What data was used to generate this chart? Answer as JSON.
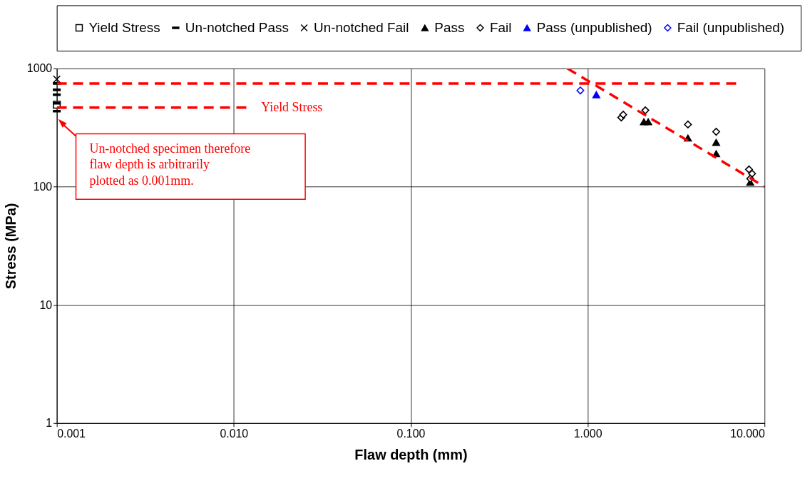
{
  "chart_data": {
    "type": "scatter",
    "xlabel": "Flaw depth (mm)",
    "ylabel": "Stress (MPa)",
    "xlim": [
      0.001,
      10
    ],
    "ylim": [
      1,
      1000
    ],
    "xticks": [
      {
        "value": 0.001,
        "label": "0.001"
      },
      {
        "value": 0.01,
        "label": "0.010"
      },
      {
        "value": 0.1,
        "label": "0.100"
      },
      {
        "value": 1,
        "label": "1.000"
      },
      {
        "value": 10,
        "label": "10.000"
      }
    ],
    "yticks": [
      1,
      10,
      100,
      1000
    ],
    "log": "xy",
    "grid": true,
    "legend": "top",
    "series": [
      {
        "name": "Yield Stress",
        "marker": "square",
        "color": "#000000",
        "x": [
          0.001
        ],
        "values": [
          494
        ]
      },
      {
        "name": "Un-notched Pass",
        "color": "#000000",
        "x": [
          0.001,
          0.001,
          0.001,
          0.001,
          0.001
        ],
        "values": [
          748,
          661,
          600,
          508,
          436
        ]
      },
      {
        "name": "Un-notched Fail",
        "marker": "cross",
        "color": "#000000",
        "x": [
          0.001
        ],
        "values": [
          812
        ]
      },
      {
        "name": "Pass",
        "marker": "triangle",
        "color": "#000000",
        "x": [
          2.08,
          2.2,
          3.69,
          5.33,
          5.33,
          8.3
        ],
        "values": [
          354,
          354,
          258,
          237,
          190,
          109
        ]
      },
      {
        "name": "Fail",
        "marker": "diamond",
        "color": "#000000",
        "x": [
          1.55,
          1.59,
          2.12,
          3.69,
          5.33,
          8.17,
          8.5,
          8.3
        ],
        "values": [
          385,
          407,
          443,
          336,
          292,
          140,
          129,
          117
        ]
      },
      {
        "name": "Pass (unpublished)",
        "marker": "triangle",
        "color": "#0000ff",
        "x": [
          1.12
        ],
        "values": [
          600
        ]
      },
      {
        "name": "Fail (unpublished)",
        "marker": "diamond",
        "color": "#0000ff",
        "x": [
          0.91
        ],
        "values": [
          652
        ]
      },
      {
        "type": "line",
        "line_style": "dashed",
        "color": "#ff0000",
        "x": [
          0.001,
          7.1
        ],
        "values": [
          748,
          748
        ]
      },
      {
        "type": "line",
        "line_style": "dashed",
        "color": "#ff0000",
        "x": [
          0.001,
          0.0121
        ],
        "values": [
          467,
          467
        ]
      },
      {
        "type": "line",
        "line_style": "dashed",
        "color": "#ff0000",
        "x": [
          0.77,
          10
        ],
        "values": [
          1000,
          100
        ]
      }
    ],
    "annotations": [
      {
        "text": "Yield Stress",
        "x": 0.0121,
        "y": 467
      },
      "Un-notched specimen therefore flaw depth is arbitrarily plotted as 0.001mm."
    ]
  }
}
